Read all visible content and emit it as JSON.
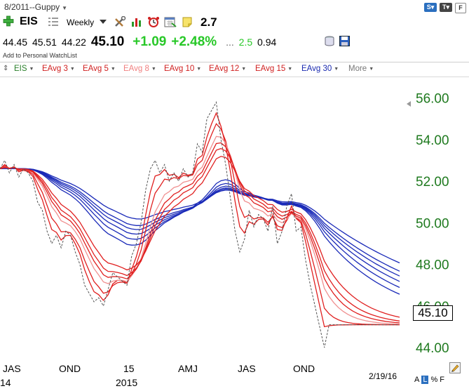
{
  "header": {
    "layout_title": "8/2011--Guppy",
    "symbol": "EIS",
    "period": "Weekly",
    "tool_value": "2.7"
  },
  "quote": {
    "open": "44.45",
    "high": "45.51",
    "low": "44.22",
    "last": "45.10",
    "change": "+1.09",
    "change_pct": "+2.48%",
    "dots": "...",
    "extra_value": "2.5",
    "extra_value2": "0.94",
    "watchlist_link": "Add to Personal WatchList"
  },
  "indicators": [
    {
      "label": "EIS",
      "color": "#2a7f2a"
    },
    {
      "label": "EAvg 3",
      "color": "#d02020"
    },
    {
      "label": "EAvg 5",
      "color": "#d02020"
    },
    {
      "label": "EAvg 8",
      "color": "#f08080"
    },
    {
      "label": "EAvg 10",
      "color": "#d02020"
    },
    {
      "label": "EAvg 12",
      "color": "#d02020"
    },
    {
      "label": "EAvg 15",
      "color": "#d02020"
    },
    {
      "label": "EAvg 30",
      "color": "#1a2ab0"
    },
    {
      "label": "More",
      "color": "#777777"
    }
  ],
  "icons": {
    "add": "plus-icon",
    "list": "list-icon",
    "tools": [
      "tools-icon",
      "chart-bars-icon",
      "alarm-clock-icon",
      "calendar-icon",
      "note-icon"
    ],
    "top_right": [
      "s-badge-icon",
      "t-badge-icon",
      "f-badge-icon"
    ],
    "quote_icons": [
      "database-icon",
      "save-icon"
    ]
  },
  "chart": {
    "current_price": "45.10",
    "footer_date": "2/19/16",
    "footer_controls": [
      "A",
      "L",
      "%",
      "F"
    ],
    "colors": {
      "price": "#555555",
      "short": "#e02020",
      "short_light": "#f09090",
      "long": "#1a2ab8",
      "axis_label": "#1f7a1f"
    }
  },
  "chart_data": {
    "type": "line",
    "x_labels": [
      "JAS",
      "OND",
      "15",
      "AMJ",
      "JAS",
      "OND"
    ],
    "x_sublabels": [
      "14",
      "",
      "2015",
      "",
      "",
      ""
    ],
    "y_ticks": [
      44,
      46,
      48,
      50,
      52,
      54,
      56
    ],
    "y_tick_labels": [
      "44.00",
      "46.00",
      "48.00",
      "50.00",
      "52.00",
      "54.00",
      "56.00"
    ],
    "ylim": [
      43.5,
      57.0
    ],
    "current_price": 45.1,
    "series": [
      {
        "name": "EIS",
        "x": [
          0,
          1,
          2,
          3,
          4,
          5,
          6,
          7,
          8,
          9,
          10,
          11,
          12,
          13,
          14,
          15,
          16,
          17,
          18,
          19,
          20,
          21,
          22,
          23,
          24,
          25,
          26,
          27,
          28,
          29,
          30,
          31,
          32,
          33,
          34,
          35,
          36,
          37,
          38,
          39,
          40,
          41,
          42,
          43,
          44,
          45,
          46,
          47,
          48,
          49,
          50,
          51,
          52,
          53,
          54,
          55,
          56,
          57,
          58,
          59,
          60,
          61,
          62,
          63,
          64,
          65,
          66,
          67,
          68,
          69,
          70,
          71,
          72,
          73,
          74,
          75,
          76,
          77,
          78,
          79,
          80,
          81,
          82,
          83,
          84,
          85
        ],
        "values": [
          52.6,
          53.0,
          52.4,
          52.8,
          52.2,
          52.6,
          52.4,
          52.0,
          51.0,
          50.6,
          49.6,
          49.0,
          49.4,
          48.8,
          49.6,
          49.4,
          48.6,
          48.0,
          47.0,
          46.6,
          46.2,
          46.4,
          46.0,
          46.8,
          47.6,
          47.4,
          47.2,
          47.0,
          48.4,
          49.0,
          50.0,
          51.6,
          52.6,
          53.0,
          52.4,
          52.8,
          52.0,
          52.4,
          52.0,
          52.6,
          52.2,
          52.4,
          53.8,
          53.4,
          55.0,
          55.4,
          55.8,
          54.0,
          52.8,
          51.2,
          49.6,
          48.6,
          49.2,
          50.6,
          49.8,
          50.4,
          50.2,
          49.6,
          50.8,
          49.0,
          49.6,
          50.8,
          51.4,
          49.6,
          49.8,
          48.2,
          47.0,
          46.0,
          45.0,
          44.0,
          45.1,
          45.1,
          45.1,
          45.1,
          45.1,
          45.1,
          45.1,
          45.1,
          45.1,
          45.1,
          45.1,
          45.1,
          45.1,
          45.1,
          45.1,
          45.1
        ]
      }
    ]
  }
}
